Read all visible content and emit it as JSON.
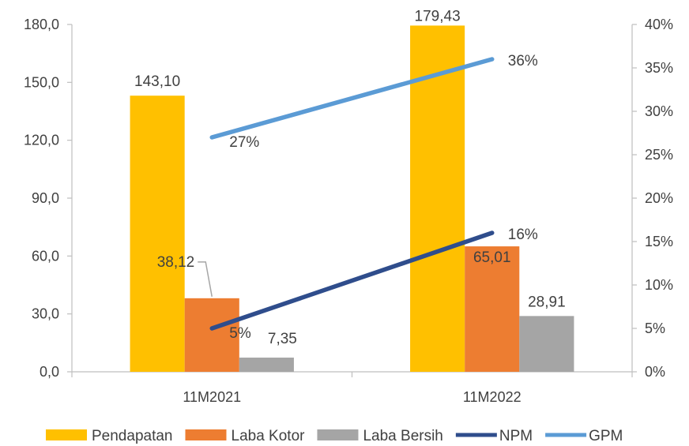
{
  "chart_data": {
    "type": "bar",
    "categories": [
      "11M2021",
      "11M2022"
    ],
    "series": [
      {
        "name": "Pendapatan",
        "kind": "bar",
        "axis": "left",
        "color": "#FFC000",
        "values": [
          143.1,
          179.43
        ],
        "labels": [
          "143,10",
          "179,43"
        ]
      },
      {
        "name": "Laba Kotor",
        "kind": "bar",
        "axis": "left",
        "color": "#ED7D31",
        "values": [
          38.12,
          65.01
        ],
        "labels": [
          "38,12",
          "65,01"
        ]
      },
      {
        "name": "Laba Bersih",
        "kind": "bar",
        "axis": "left",
        "color": "#A5A5A5",
        "values": [
          7.35,
          28.91
        ],
        "labels": [
          "7,35",
          "28,91"
        ]
      },
      {
        "name": "NPM",
        "kind": "line",
        "axis": "right",
        "color": "#2F4D8C",
        "values": [
          5,
          16
        ],
        "labels": [
          "5%",
          "16%"
        ]
      },
      {
        "name": "GPM",
        "kind": "line",
        "axis": "right",
        "color": "#5B9BD5",
        "values": [
          27,
          36
        ],
        "labels": [
          "27%",
          "36%"
        ]
      }
    ],
    "left_axis": {
      "min": 0,
      "max": 180,
      "ticks": [
        "0,0",
        "30,0",
        "60,0",
        "90,0",
        "120,0",
        "150,0",
        "180,0"
      ]
    },
    "right_axis": {
      "min": 0,
      "max": 40,
      "ticks": [
        "0%",
        "5%",
        "10%",
        "15%",
        "20%",
        "25%",
        "30%",
        "35%",
        "40%"
      ]
    },
    "legend_position": "bottom",
    "grid": false
  }
}
